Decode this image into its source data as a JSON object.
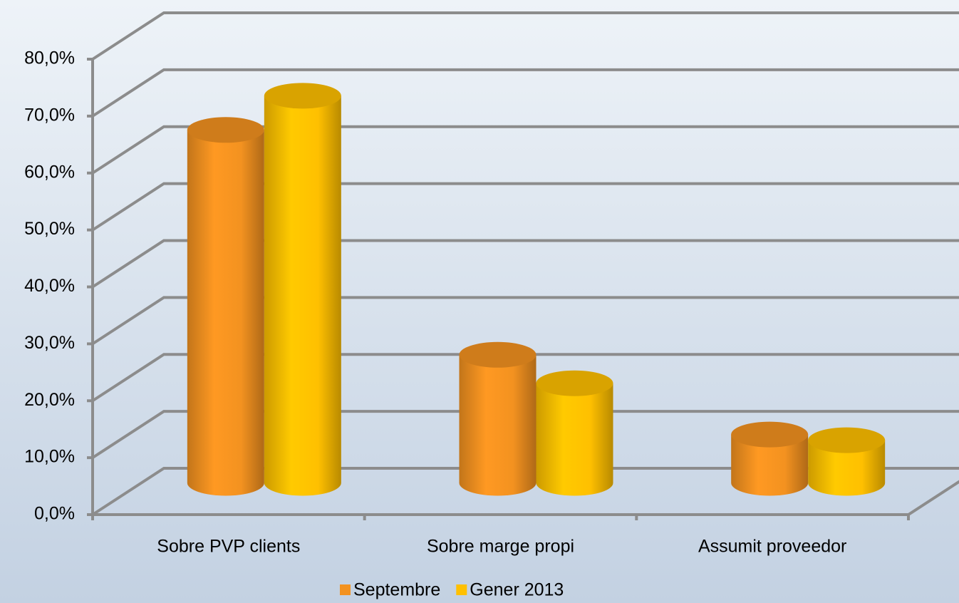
{
  "chart_data": {
    "type": "bar3d",
    "categories": [
      "Sobre PVP clients",
      "Sobre  marge propi",
      "Assumit proveedor"
    ],
    "series": [
      {
        "name": "Septembre",
        "color": "#f39220",
        "values": [
          63.5,
          24,
          10
        ]
      },
      {
        "name": "Gener 2013",
        "color": "#ffc000",
        "values": [
          69.5,
          19,
          9
        ]
      }
    ],
    "ylim": [
      0,
      80
    ],
    "yticks": [
      {
        "value": 0,
        "label": "0,0%"
      },
      {
        "value": 10,
        "label": "10,0%"
      },
      {
        "value": 20,
        "label": "20,0%"
      },
      {
        "value": 30,
        "label": "30,0%"
      },
      {
        "value": 40,
        "label": "40,0%"
      },
      {
        "value": 50,
        "label": "50,0%"
      },
      {
        "value": 60,
        "label": "60,0%"
      },
      {
        "value": 70,
        "label": "70,0%"
      },
      {
        "value": 80,
        "label": "80,0%"
      }
    ],
    "grid": true,
    "legend": "bottom"
  }
}
